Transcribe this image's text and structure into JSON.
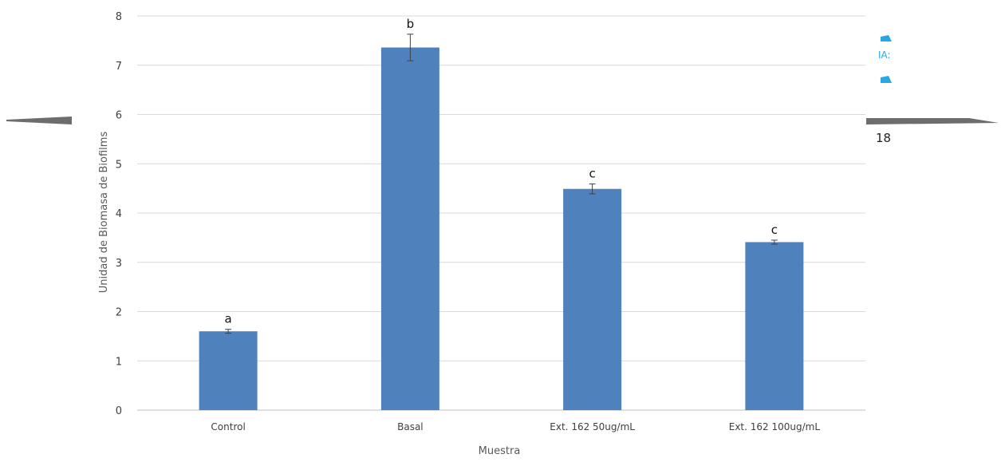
{
  "chart_data": {
    "type": "bar",
    "title": "",
    "xlabel": "Muestra",
    "ylabel": "Unidad de Biomasa de Biofilms",
    "ylim": [
      0,
      8
    ],
    "yticks": [
      "0",
      "1",
      "2",
      "3",
      "4",
      "5",
      "6",
      "7",
      "8"
    ],
    "grid": true,
    "legend": "none",
    "bar_color": "#4f81bd",
    "categories": [
      "Control",
      "Basal",
      "Ext. 162 50ug/mL",
      "Ext. 162 100ug/mL"
    ],
    "values": [
      1.6,
      7.36,
      4.49,
      3.41
    ],
    "errors": [
      0.04,
      0.27,
      0.1,
      0.04
    ],
    "significance_labels": [
      "a",
      "b",
      "c",
      "c"
    ]
  },
  "overlay": {
    "right_text_1": "IA:",
    "right_text_2": "18",
    "line_color": "#6d6d6d",
    "accent_color": "#29a8e0"
  }
}
